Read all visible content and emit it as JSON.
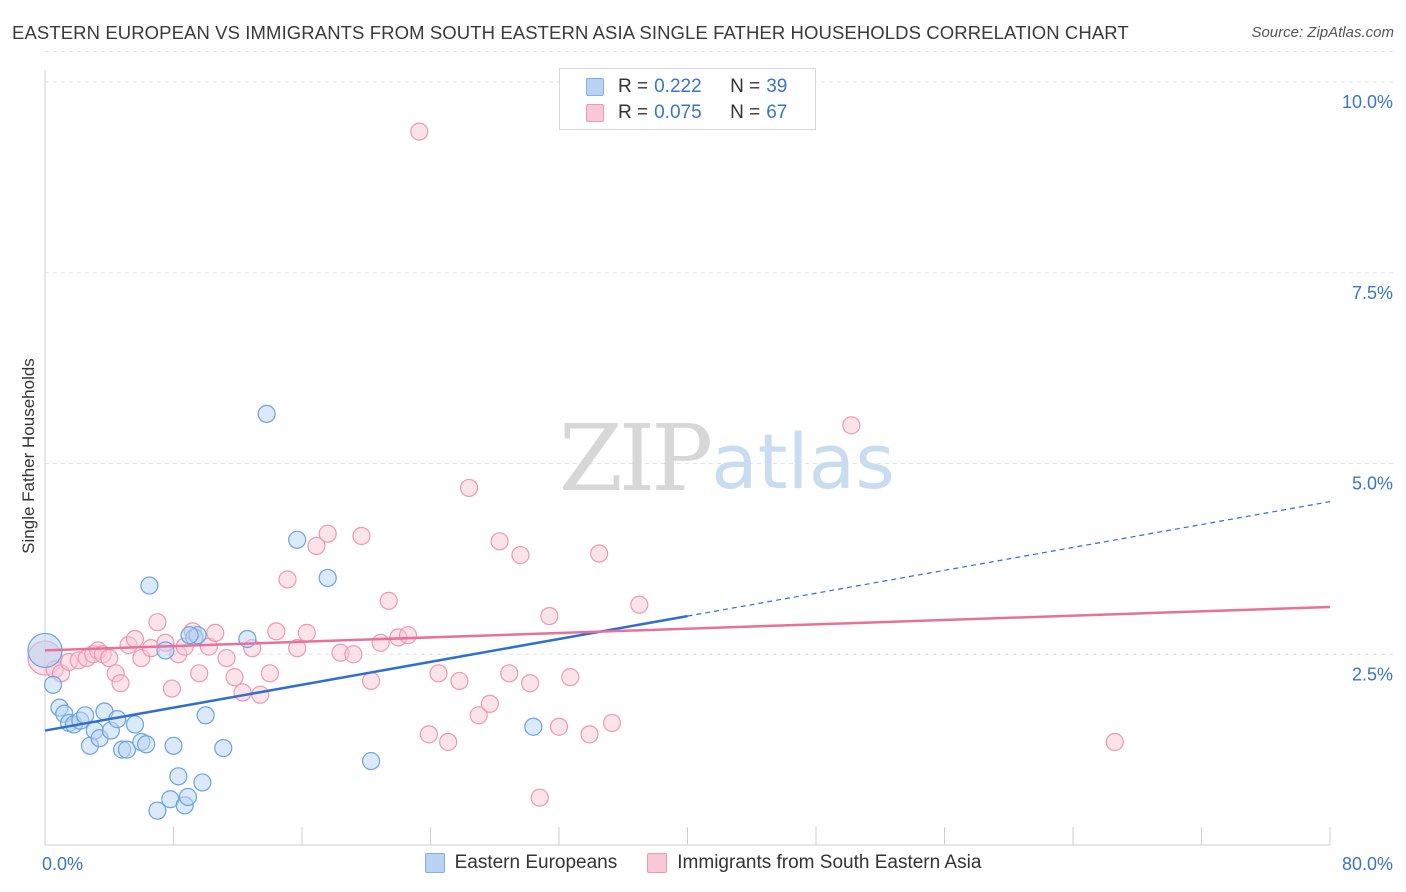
{
  "title": "EASTERN EUROPEAN VS IMMIGRANTS FROM SOUTH EASTERN ASIA SINGLE FATHER HOUSEHOLDS CORRELATION CHART",
  "source": "Source: ZipAtlas.com",
  "watermark": {
    "zip": "ZIP",
    "atlas": "atlas"
  },
  "legend_top": [
    {
      "r_label": "R =",
      "r_value": "0.222",
      "n_label": "N =",
      "n_value": "39",
      "color": "#b9d3f3"
    },
    {
      "r_label": "R =",
      "r_value": "0.075",
      "n_label": "N =",
      "n_value": "67",
      "color": "#f8c8d6"
    }
  ],
  "chart_data": {
    "type": "scatter",
    "ylabel": "Single Father Households",
    "xlim": [
      0,
      80
    ],
    "ylim": [
      0,
      10.5
    ],
    "x_tick_labels": [
      "0.0%",
      "80.0%"
    ],
    "y_ticks": [
      {
        "value": 2.5,
        "label": "2.5%"
      },
      {
        "value": 5.0,
        "label": "5.0%"
      },
      {
        "value": 7.5,
        "label": "7.5%"
      },
      {
        "value": 10.0,
        "label": "10.0%"
      }
    ],
    "grid": true,
    "legend_position": "bottom",
    "series": [
      {
        "name": "Eastern Europeans",
        "color": "#6aa3e0",
        "fill": "#b9d3f3",
        "trend": {
          "x": [
            0,
            40
          ],
          "y": [
            1.5,
            3.0
          ],
          "dashed_to": [
            80,
            4.5
          ],
          "color": "#2f6fcf"
        },
        "points": [
          [
            0.0,
            2.55
          ],
          [
            0.5,
            2.1
          ],
          [
            0.9,
            1.8
          ],
          [
            1.2,
            1.72
          ],
          [
            1.5,
            1.6
          ],
          [
            1.8,
            1.58
          ],
          [
            2.2,
            1.63
          ],
          [
            2.5,
            1.7
          ],
          [
            2.8,
            1.3
          ],
          [
            3.1,
            1.5
          ],
          [
            3.4,
            1.4
          ],
          [
            3.7,
            1.75
          ],
          [
            4.1,
            1.5
          ],
          [
            4.5,
            1.65
          ],
          [
            4.8,
            1.25
          ],
          [
            5.1,
            1.25
          ],
          [
            5.6,
            1.58
          ],
          [
            6.0,
            1.35
          ],
          [
            6.3,
            1.32
          ],
          [
            6.5,
            3.4
          ],
          [
            7.0,
            0.45
          ],
          [
            7.5,
            2.55
          ],
          [
            7.8,
            0.6
          ],
          [
            8.0,
            1.3
          ],
          [
            8.3,
            0.9
          ],
          [
            8.7,
            0.52
          ],
          [
            8.9,
            0.63
          ],
          [
            9.3,
            2.72
          ],
          [
            9.5,
            2.75
          ],
          [
            9.8,
            0.82
          ],
          [
            10.0,
            1.7
          ],
          [
            11.1,
            1.27
          ],
          [
            12.6,
            2.7
          ],
          [
            13.8,
            5.65
          ],
          [
            15.7,
            4.0
          ],
          [
            17.6,
            3.5
          ],
          [
            20.3,
            1.1
          ],
          [
            30.4,
            1.55
          ],
          [
            9.0,
            2.75
          ]
        ]
      },
      {
        "name": "Immigrants from South Eastern Asia",
        "color": "#ee98b3",
        "fill": "#f8c8d6",
        "trend": {
          "x": [
            0,
            80
          ],
          "y": [
            2.55,
            3.12
          ],
          "color": "#e8709b"
        },
        "points": [
          [
            0.0,
            2.45
          ],
          [
            0.6,
            2.3
          ],
          [
            1.0,
            2.25
          ],
          [
            1.5,
            2.4
          ],
          [
            2.1,
            2.42
          ],
          [
            2.6,
            2.45
          ],
          [
            3.0,
            2.5
          ],
          [
            3.3,
            2.55
          ],
          [
            3.6,
            2.5
          ],
          [
            4.0,
            2.45
          ],
          [
            4.4,
            2.25
          ],
          [
            4.7,
            2.12
          ],
          [
            5.2,
            2.62
          ],
          [
            5.6,
            2.7
          ],
          [
            6.0,
            2.45
          ],
          [
            6.6,
            2.58
          ],
          [
            7.0,
            2.92
          ],
          [
            7.5,
            2.65
          ],
          [
            7.9,
            2.05
          ],
          [
            8.3,
            2.5
          ],
          [
            8.7,
            2.6
          ],
          [
            9.2,
            2.8
          ],
          [
            9.6,
            2.25
          ],
          [
            10.2,
            2.6
          ],
          [
            10.6,
            2.78
          ],
          [
            11.3,
            2.45
          ],
          [
            11.8,
            2.2
          ],
          [
            12.3,
            2.0
          ],
          [
            12.9,
            2.58
          ],
          [
            13.4,
            1.97
          ],
          [
            14.0,
            2.25
          ],
          [
            14.4,
            2.8
          ],
          [
            15.1,
            3.48
          ],
          [
            15.7,
            2.58
          ],
          [
            16.3,
            2.78
          ],
          [
            16.9,
            3.92
          ],
          [
            17.6,
            4.08
          ],
          [
            18.4,
            2.52
          ],
          [
            19.2,
            2.5
          ],
          [
            19.7,
            4.05
          ],
          [
            20.3,
            2.15
          ],
          [
            20.9,
            2.65
          ],
          [
            21.4,
            3.2
          ],
          [
            22.0,
            2.72
          ],
          [
            22.6,
            2.75
          ],
          [
            23.3,
            9.35
          ],
          [
            23.9,
            1.45
          ],
          [
            24.5,
            2.25
          ],
          [
            25.1,
            1.35
          ],
          [
            25.8,
            2.15
          ],
          [
            26.4,
            4.68
          ],
          [
            27.0,
            1.7
          ],
          [
            27.7,
            1.85
          ],
          [
            28.3,
            3.98
          ],
          [
            28.9,
            2.25
          ],
          [
            29.6,
            3.8
          ],
          [
            30.2,
            2.12
          ],
          [
            30.8,
            0.62
          ],
          [
            31.4,
            3.0
          ],
          [
            32.0,
            1.55
          ],
          [
            32.7,
            2.2
          ],
          [
            33.9,
            1.45
          ],
          [
            34.5,
            3.82
          ],
          [
            35.3,
            1.6
          ],
          [
            37.0,
            3.15
          ],
          [
            50.2,
            5.5
          ],
          [
            66.6,
            1.35
          ]
        ]
      }
    ]
  }
}
